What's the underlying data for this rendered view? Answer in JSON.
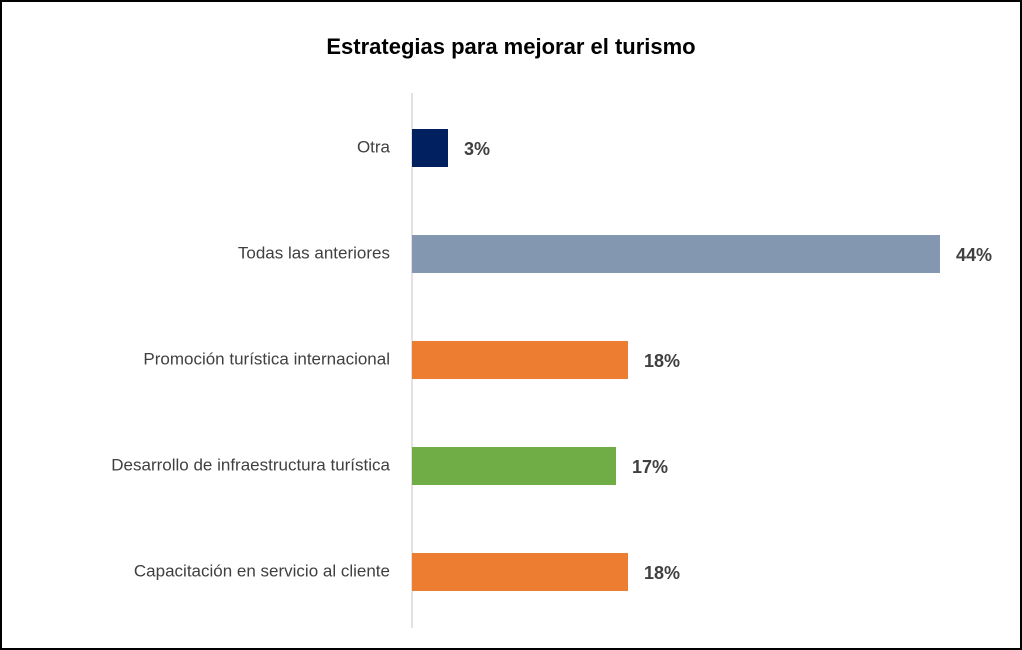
{
  "chart_data": {
    "type": "bar",
    "orientation": "horizontal",
    "title": "Estrategias para mejorar el turismo",
    "categories": [
      "Otra",
      "Todas las anteriores",
      "Promoción turística internacional",
      "Desarrollo de infraestructura turística",
      "Capacitación en servicio al cliente"
    ],
    "values": [
      3,
      44,
      18,
      17,
      18
    ],
    "value_labels": [
      "3%",
      "44%",
      "18%",
      "17%",
      "18%"
    ],
    "colors": [
      "#002060",
      "#8497b0",
      "#ed7d31",
      "#70ad47",
      "#ed7d31"
    ]
  }
}
